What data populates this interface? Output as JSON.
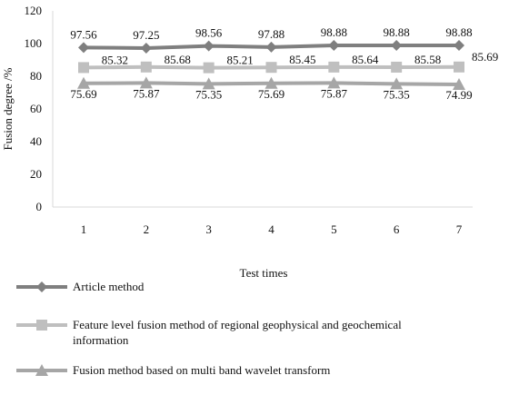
{
  "chart_data": {
    "type": "line",
    "xlabel": "Test times",
    "ylabel": "Fusion degree /%",
    "ylim": [
      0,
      120
    ],
    "yticks": [
      0,
      20,
      40,
      60,
      80,
      100,
      120
    ],
    "categories": [
      "1",
      "2",
      "3",
      "4",
      "5",
      "6",
      "7"
    ],
    "grid": false,
    "legend_position": "bottom",
    "series": [
      {
        "name": "Article method",
        "values": [
          97.56,
          97.25,
          98.56,
          97.88,
          98.88,
          98.88,
          98.88
        ],
        "labels": [
          "97.56",
          "97.25",
          "98.56",
          "97.88",
          "98.88",
          "98.88",
          "98.88"
        ],
        "marker": "diamond",
        "color": "#7f7f7f"
      },
      {
        "name": "Feature level fusion method of regional geophysical and geochemical information",
        "values": [
          85.32,
          85.68,
          85.21,
          85.45,
          85.64,
          85.58,
          85.69
        ],
        "labels": [
          "85.32",
          "85.68",
          "85.21",
          "85.45",
          "85.64",
          "85.58",
          "85.69"
        ],
        "marker": "square",
        "color": "#bfbfbf"
      },
      {
        "name": "Fusion method based on multi band wavelet transform",
        "values": [
          75.69,
          75.87,
          75.35,
          75.69,
          75.87,
          75.35,
          74.99
        ],
        "labels": [
          "75.69",
          "75.87",
          "75.35",
          "75.69",
          "75.87",
          "75.35",
          "74.99"
        ],
        "marker": "triangle",
        "color": "#a6a6a6"
      }
    ]
  }
}
